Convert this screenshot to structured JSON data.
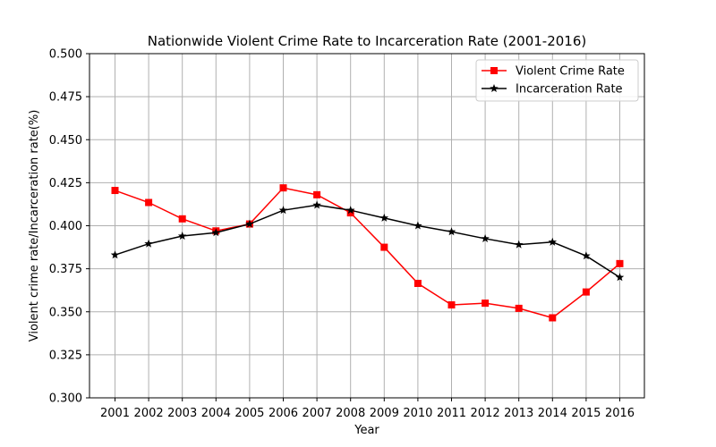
{
  "chart_data": {
    "type": "line",
    "title": "Nationwide Violent Crime Rate to Incarceration Rate (2001-2016)",
    "xlabel": "Year",
    "ylabel": "Violent crime rate/Incarceration rate(%)",
    "categories": [
      "2001",
      "2002",
      "2003",
      "2004",
      "2005",
      "2006",
      "2007",
      "2008",
      "2009",
      "2010",
      "2011",
      "2012",
      "2013",
      "2014",
      "2015",
      "2016"
    ],
    "ylim": [
      0.3,
      0.5
    ],
    "yticks": [
      "0.300",
      "0.325",
      "0.350",
      "0.375",
      "0.400",
      "0.425",
      "0.450",
      "0.475",
      "0.500"
    ],
    "grid": true,
    "legend_position": "top-right",
    "series": [
      {
        "name": "Violent Crime Rate",
        "color": "#ff0000",
        "marker": "square",
        "values": [
          0.4205,
          0.4135,
          0.404,
          0.397,
          0.401,
          0.422,
          0.418,
          0.4075,
          0.3875,
          0.3665,
          0.354,
          0.355,
          0.352,
          0.3465,
          0.3615,
          0.378
        ]
      },
      {
        "name": "Incarceration Rate",
        "color": "#000000",
        "marker": "star",
        "values": [
          0.383,
          0.3895,
          0.394,
          0.396,
          0.401,
          0.409,
          0.412,
          0.409,
          0.4045,
          0.4,
          0.3965,
          0.3925,
          0.389,
          0.3905,
          0.3825,
          0.37
        ]
      }
    ]
  }
}
